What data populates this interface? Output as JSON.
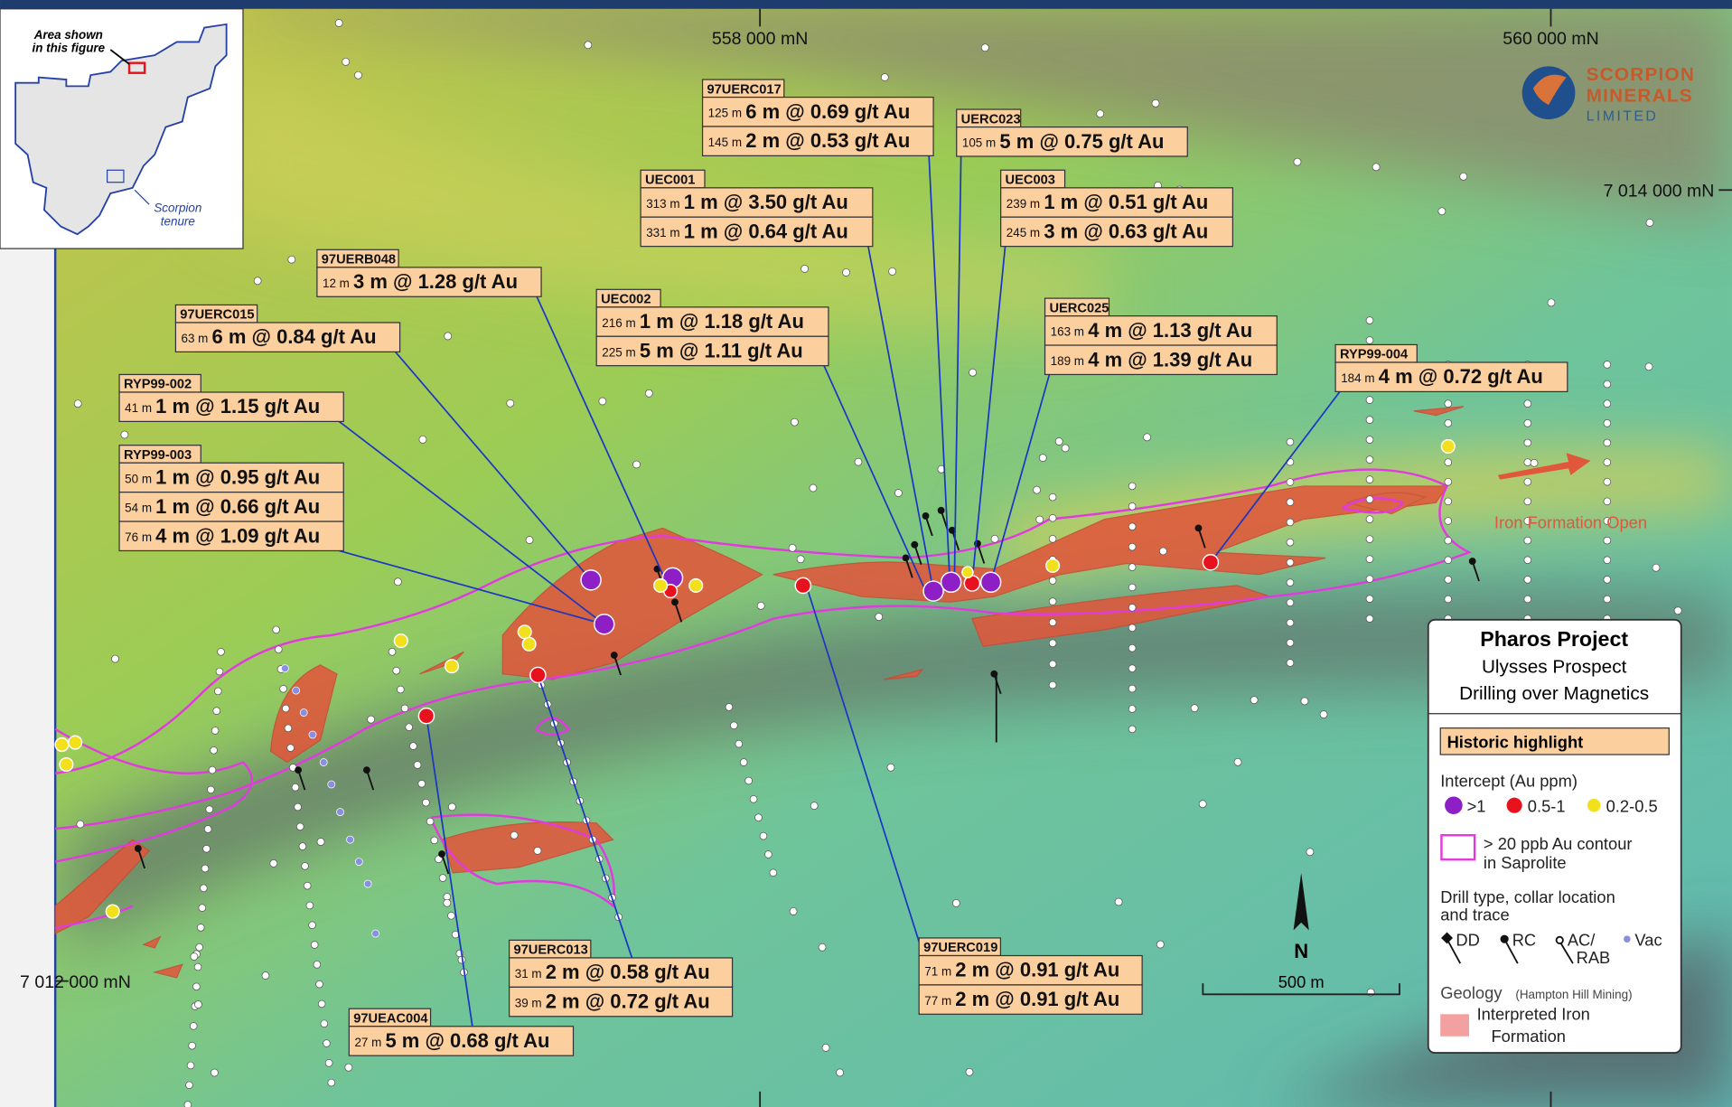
{
  "map": {
    "grid_labels": {
      "north_558": "558 000 mN",
      "north_560": "560 000 mN",
      "east_7014": "7 014 000 mN",
      "east_7012": "7 012 000 mN"
    },
    "inset": {
      "label": [
        "Area shown",
        "in this figure"
      ],
      "tenure": [
        "Scorpion",
        "tenure"
      ]
    },
    "logo": [
      "SCORPION",
      "MINERALS",
      "LIMITED"
    ],
    "annotation": "Iron Formation Open",
    "north": "N",
    "scale": "500 m",
    "callouts": [
      {
        "hole": "97UERC017",
        "intercepts": [
          {
            "depth": "125 m",
            "text": "6 m @ 0.69 g/t Au"
          },
          {
            "depth": "145 m",
            "text": "2 m @ 0.53 g/t Au"
          }
        ]
      },
      {
        "hole": "UERC023",
        "intercepts": [
          {
            "depth": "105 m",
            "text": "5 m @ 0.75 g/t Au"
          }
        ]
      },
      {
        "hole": "UEC001",
        "intercepts": [
          {
            "depth": "313 m",
            "text": "1 m @ 3.50 g/t Au"
          },
          {
            "depth": "331 m",
            "text": "1 m @ 0.64 g/t Au"
          }
        ]
      },
      {
        "hole": "UEC003",
        "intercepts": [
          {
            "depth": "239 m",
            "text": "1 m @ 0.51 g/t Au"
          },
          {
            "depth": "245 m",
            "text": "3 m @ 0.63 g/t Au"
          }
        ]
      },
      {
        "hole": "97UERB048",
        "intercepts": [
          {
            "depth": "12 m",
            "text": "3 m @ 1.28 g/t Au"
          }
        ]
      },
      {
        "hole": "UEC002",
        "intercepts": [
          {
            "depth": "216 m",
            "text": "1 m @ 1.18 g/t Au"
          },
          {
            "depth": "225 m",
            "text": "5 m @ 1.11 g/t Au"
          }
        ]
      },
      {
        "hole": "97UERC015",
        "intercepts": [
          {
            "depth": "63 m",
            "text": "6 m @ 0.84 g/t Au"
          }
        ]
      },
      {
        "hole": "UERC025",
        "intercepts": [
          {
            "depth": "163 m",
            "text": "4 m @ 1.13 g/t Au"
          },
          {
            "depth": "189 m",
            "text": "4 m @ 1.39 g/t Au"
          }
        ]
      },
      {
        "hole": "RYP99-002",
        "intercepts": [
          {
            "depth": "41 m",
            "text": "1 m @ 1.15 g/t Au"
          }
        ]
      },
      {
        "hole": "RYP99-004",
        "intercepts": [
          {
            "depth": "184 m",
            "text": "4 m @ 0.72 g/t Au"
          }
        ]
      },
      {
        "hole": "RYP99-003",
        "intercepts": [
          {
            "depth": "50 m",
            "text": "1 m @ 0.95 g/t Au"
          },
          {
            "depth": "54 m",
            "text": "1 m @ 0.66 g/t Au"
          },
          {
            "depth": "76 m",
            "text": "4 m @ 1.09 g/t Au"
          }
        ]
      },
      {
        "hole": "97UERC013",
        "intercepts": [
          {
            "depth": "31 m",
            "text": "2 m @ 0.58 g/t Au"
          },
          {
            "depth": "39 m",
            "text": "2 m @ 0.72 g/t Au"
          }
        ]
      },
      {
        "hole": "97UERC019",
        "intercepts": [
          {
            "depth": "71 m",
            "text": "2 m @ 0.91 g/t Au"
          },
          {
            "depth": "77 m",
            "text": "2 m @ 0.91 g/t Au"
          }
        ]
      },
      {
        "hole": "97UEAC004",
        "intercepts": [
          {
            "depth": "27 m",
            "text": "5 m @ 0.68 g/t Au"
          }
        ]
      }
    ],
    "legend": {
      "title": [
        "Pharos Project",
        "Ulysses Prospect",
        "Drilling over Magnetics"
      ],
      "highlight": "Historic highlight",
      "intercept_title": "Intercept (Au ppm)",
      "intercept_items": [
        ">1",
        "0.5-1",
        "0.2-0.5"
      ],
      "contour": [
        "> 20 ppb Au contour",
        "in Saprolite"
      ],
      "drill_title": [
        "Drill type, collar location",
        "and trace"
      ],
      "drill_types": {
        "dd": "DD",
        "rc": "RC",
        "ac": [
          "AC/",
          "RAB"
        ],
        "vac": "Vac"
      },
      "geology": "Geology",
      "geology_source": "(Hampton Hill Mining)",
      "geology_item": [
        "Interpreted Iron",
        "Formation"
      ]
    }
  }
}
